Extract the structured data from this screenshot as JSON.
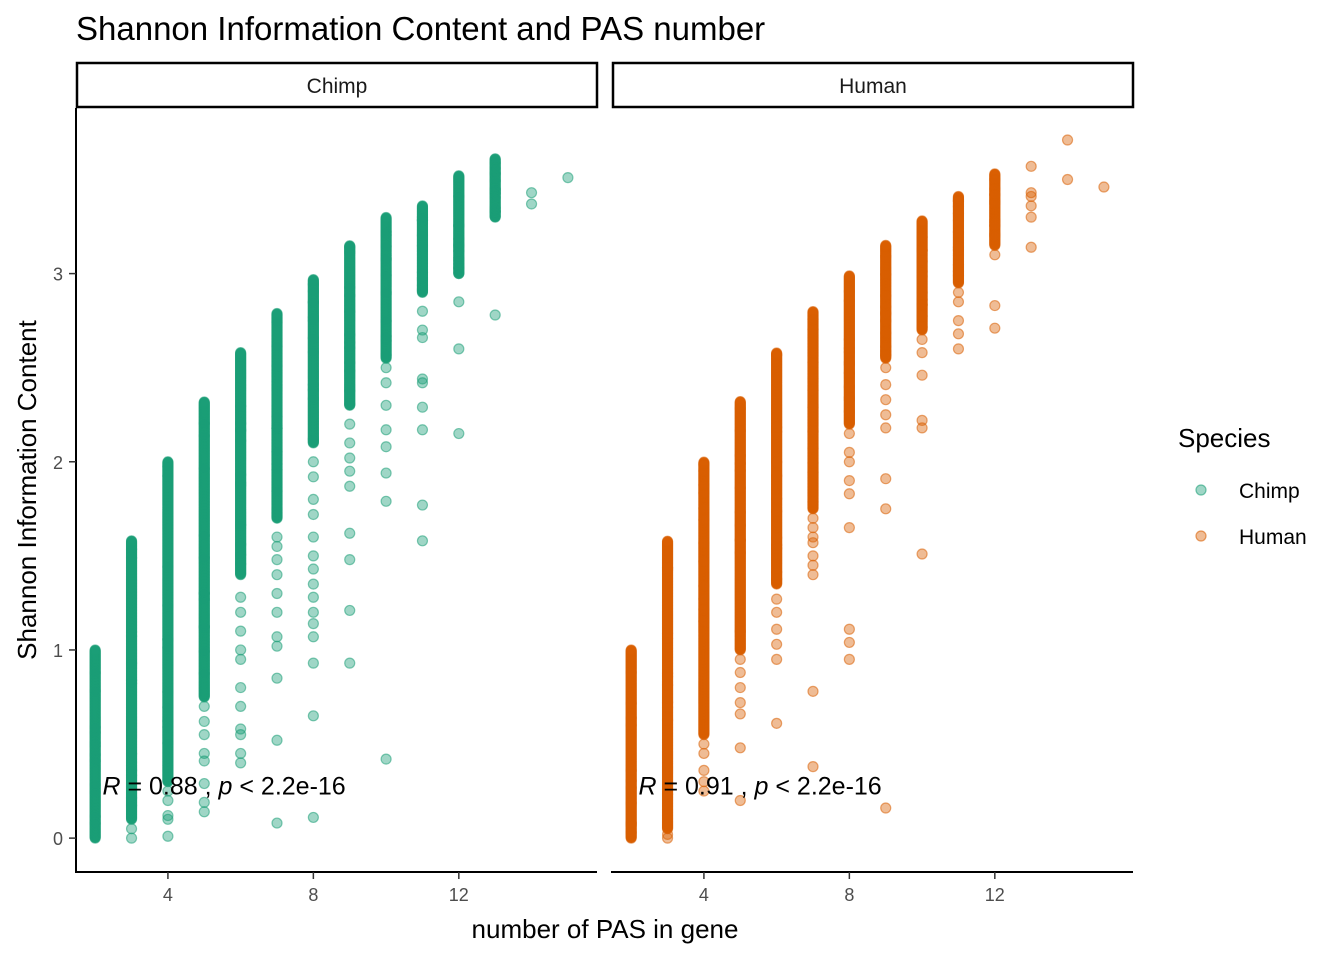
{
  "chart_data": {
    "type": "scatter",
    "title": "Shannon Information Content and PAS number",
    "xlabel": "number of PAS in gene",
    "ylabel": "Shannon Information Content",
    "xlim": [
      1.5,
      15.8
    ],
    "ylim": [
      -0.18,
      3.88
    ],
    "x_ticks": [
      {
        "value": 4,
        "label": "4"
      },
      {
        "value": 8,
        "label": "8"
      },
      {
        "value": 12,
        "label": "12"
      }
    ],
    "y_ticks": [
      {
        "value": 0,
        "label": "0"
      },
      {
        "value": 1,
        "label": "1"
      },
      {
        "value": 2,
        "label": "2"
      },
      {
        "value": 3,
        "label": "3"
      }
    ],
    "grid": false,
    "legend": {
      "title": "Species",
      "placement": "right",
      "entries": [
        {
          "label": "Chimp",
          "color": "#1b9e77"
        },
        {
          "label": "Human",
          "color": "#d95f02"
        }
      ]
    },
    "panels": [
      {
        "strip_label": "Chimp",
        "color": "#1b9e77",
        "annotation": {
          "r_symbol": "R",
          "eq": " = 0.88 , ",
          "p_symbol": "p",
          "rest": " < 2.2e-16",
          "x": 2.2,
          "y": 0.28
        },
        "columns": [
          {
            "x": 2,
            "min": 0.0,
            "max": 1.0,
            "dense_from": 0.0,
            "extra": []
          },
          {
            "x": 3,
            "min": 0.0,
            "max": 1.58,
            "dense_from": 0.1,
            "extra": [
              0.0,
              0.05
            ]
          },
          {
            "x": 4,
            "min": 0.01,
            "max": 2.0,
            "dense_from": 0.3,
            "extra": [
              0.01,
              0.1,
              0.12,
              0.2,
              0.25
            ]
          },
          {
            "x": 5,
            "min": 0.14,
            "max": 2.32,
            "dense_from": 0.75,
            "extra": [
              0.14,
              0.19,
              0.29,
              0.41,
              0.45,
              0.55,
              0.62,
              0.7
            ]
          },
          {
            "x": 6,
            "min": 0.4,
            "max": 2.58,
            "dense_from": 1.4,
            "extra": [
              0.4,
              0.45,
              0.55,
              0.58,
              0.7,
              0.8,
              0.95,
              1.0,
              1.1,
              1.2,
              1.28
            ]
          },
          {
            "x": 7,
            "min": 0.08,
            "max": 2.79,
            "dense_from": 1.7,
            "extra": [
              0.08,
              0.52,
              0.85,
              1.02,
              1.07,
              1.2,
              1.3,
              1.4,
              1.48,
              1.55,
              1.6
            ]
          },
          {
            "x": 8,
            "min": 0.11,
            "max": 2.97,
            "dense_from": 2.1,
            "extra": [
              0.11,
              0.65,
              0.93,
              1.07,
              1.14,
              1.2,
              1.28,
              1.35,
              1.43,
              1.5,
              1.6,
              1.72,
              1.8,
              1.92,
              2.0
            ]
          },
          {
            "x": 9,
            "min": 0.93,
            "max": 3.15,
            "dense_from": 2.3,
            "extra": [
              0.93,
              1.21,
              1.48,
              1.62,
              1.87,
              1.95,
              2.02,
              2.1,
              2.2
            ]
          },
          {
            "x": 10,
            "min": 0.42,
            "max": 3.3,
            "dense_from": 2.55,
            "extra": [
              0.42,
              1.79,
              1.94,
              2.08,
              2.17,
              2.3,
              2.42,
              2.5
            ]
          },
          {
            "x": 11,
            "min": 1.58,
            "max": 3.36,
            "dense_from": 2.9,
            "extra": [
              1.58,
              1.77,
              2.17,
              2.29,
              2.42,
              2.44,
              2.66,
              2.7,
              2.8
            ]
          },
          {
            "x": 12,
            "min": 2.15,
            "max": 3.52,
            "dense_from": 3.0,
            "extra": [
              2.15,
              2.6,
              2.85,
              3.05
            ]
          },
          {
            "x": 13,
            "min": 2.78,
            "max": 3.61,
            "dense_from": 3.3,
            "extra": [
              2.78,
              3.33,
              3.35,
              3.45,
              3.56,
              3.61
            ]
          },
          {
            "x": 14,
            "min": 3.37,
            "max": 3.43,
            "dense_from": 3.5,
            "extra": [
              3.37,
              3.43
            ]
          },
          {
            "x": 15,
            "min": 3.51,
            "max": 3.51,
            "dense_from": 3.6,
            "extra": [
              3.51
            ]
          }
        ]
      },
      {
        "strip_label": "Human",
        "color": "#d95f02",
        "annotation": {
          "r_symbol": "R",
          "eq": " = 0.91 , ",
          "p_symbol": "p",
          "rest": " < 2.2e-16",
          "x": 2.2,
          "y": 0.28
        },
        "columns": [
          {
            "x": 2,
            "min": 0.0,
            "max": 1.0,
            "dense_from": 0.0,
            "extra": []
          },
          {
            "x": 3,
            "min": 0.0,
            "max": 1.58,
            "dense_from": 0.05,
            "extra": [
              0.0,
              0.02
            ]
          },
          {
            "x": 4,
            "min": 0.25,
            "max": 2.0,
            "dense_from": 0.55,
            "extra": [
              0.25,
              0.3,
              0.36,
              0.45,
              0.5
            ]
          },
          {
            "x": 5,
            "min": 0.2,
            "max": 2.32,
            "dense_from": 1.0,
            "extra": [
              0.2,
              0.48,
              0.66,
              0.72,
              0.8,
              0.88,
              0.95
            ]
          },
          {
            "x": 6,
            "min": 0.61,
            "max": 2.58,
            "dense_from": 1.35,
            "extra": [
              0.61,
              0.95,
              1.03,
              1.11,
              1.2,
              1.27
            ]
          },
          {
            "x": 7,
            "min": 0.38,
            "max": 2.8,
            "dense_from": 1.75,
            "extra": [
              0.38,
              0.78,
              1.4,
              1.45,
              1.5,
              1.57,
              1.6,
              1.65,
              1.7
            ]
          },
          {
            "x": 8,
            "min": 0.95,
            "max": 2.99,
            "dense_from": 2.2,
            "extra": [
              0.95,
              1.04,
              1.11,
              1.65,
              1.83,
              1.9,
              2.0,
              2.05,
              2.15
            ]
          },
          {
            "x": 9,
            "min": 0.16,
            "max": 3.15,
            "dense_from": 2.55,
            "extra": [
              0.16,
              1.75,
              1.91,
              2.18,
              2.25,
              2.33,
              2.41,
              2.5
            ]
          },
          {
            "x": 10,
            "min": 1.51,
            "max": 3.28,
            "dense_from": 2.7,
            "extra": [
              1.51,
              2.18,
              2.22,
              2.46,
              2.58,
              2.65
            ]
          },
          {
            "x": 11,
            "min": 2.6,
            "max": 3.41,
            "dense_from": 2.95,
            "extra": [
              2.6,
              2.68,
              2.75,
              2.85,
              2.9
            ]
          },
          {
            "x": 12,
            "min": 2.71,
            "max": 3.53,
            "dense_from": 3.15,
            "extra": [
              2.71,
              2.83,
              3.1
            ]
          },
          {
            "x": 13,
            "min": 3.14,
            "max": 3.57,
            "dense_from": 3.6,
            "extra": [
              3.14,
              3.3,
              3.36,
              3.41,
              3.43,
              3.57
            ]
          },
          {
            "x": 14,
            "min": 3.5,
            "max": 3.71,
            "dense_from": 3.8,
            "extra": [
              3.5,
              3.71
            ]
          },
          {
            "x": 15,
            "min": 3.46,
            "max": 3.46,
            "dense_from": 3.8,
            "extra": [
              3.46
            ]
          }
        ]
      }
    ]
  }
}
